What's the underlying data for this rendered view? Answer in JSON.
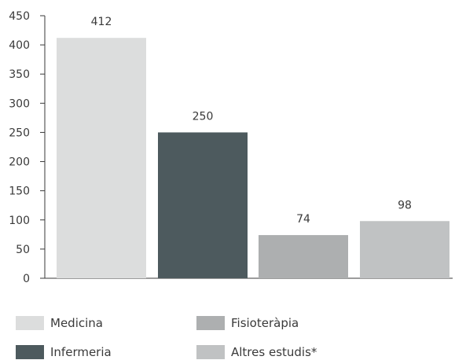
{
  "chart_data": {
    "type": "bar",
    "categories": [
      "Medicina",
      "Infermeria",
      "Fisioteràpia",
      "Altres estudis*"
    ],
    "values": [
      412,
      250,
      74,
      98
    ],
    "data_labels": [
      "412",
      "250",
      "74",
      "98"
    ],
    "colors": [
      "#dcdddd",
      "#4d5a5e",
      "#adafb0",
      "#c0c2c3"
    ],
    "title": "",
    "xlabel": "",
    "ylabel": "",
    "ylim": [
      0,
      450
    ],
    "yticks": [
      0,
      50,
      100,
      150,
      200,
      250,
      300,
      350,
      400,
      450
    ],
    "ytick_labels": [
      "0",
      "50",
      "100",
      "150",
      "200",
      "250",
      "300",
      "350",
      "400",
      "450"
    ],
    "grid": false,
    "legend_position": "bottom",
    "legend": [
      {
        "label": "Medicina",
        "color": "#dcdddd"
      },
      {
        "label": "Fisioteràpia",
        "color": "#adafb0"
      },
      {
        "label": "Infermeria",
        "color": "#4d5a5e"
      },
      {
        "label": "Altres estudis*",
        "color": "#c0c2c3"
      }
    ],
    "axis_color": "#3a3a3a"
  }
}
